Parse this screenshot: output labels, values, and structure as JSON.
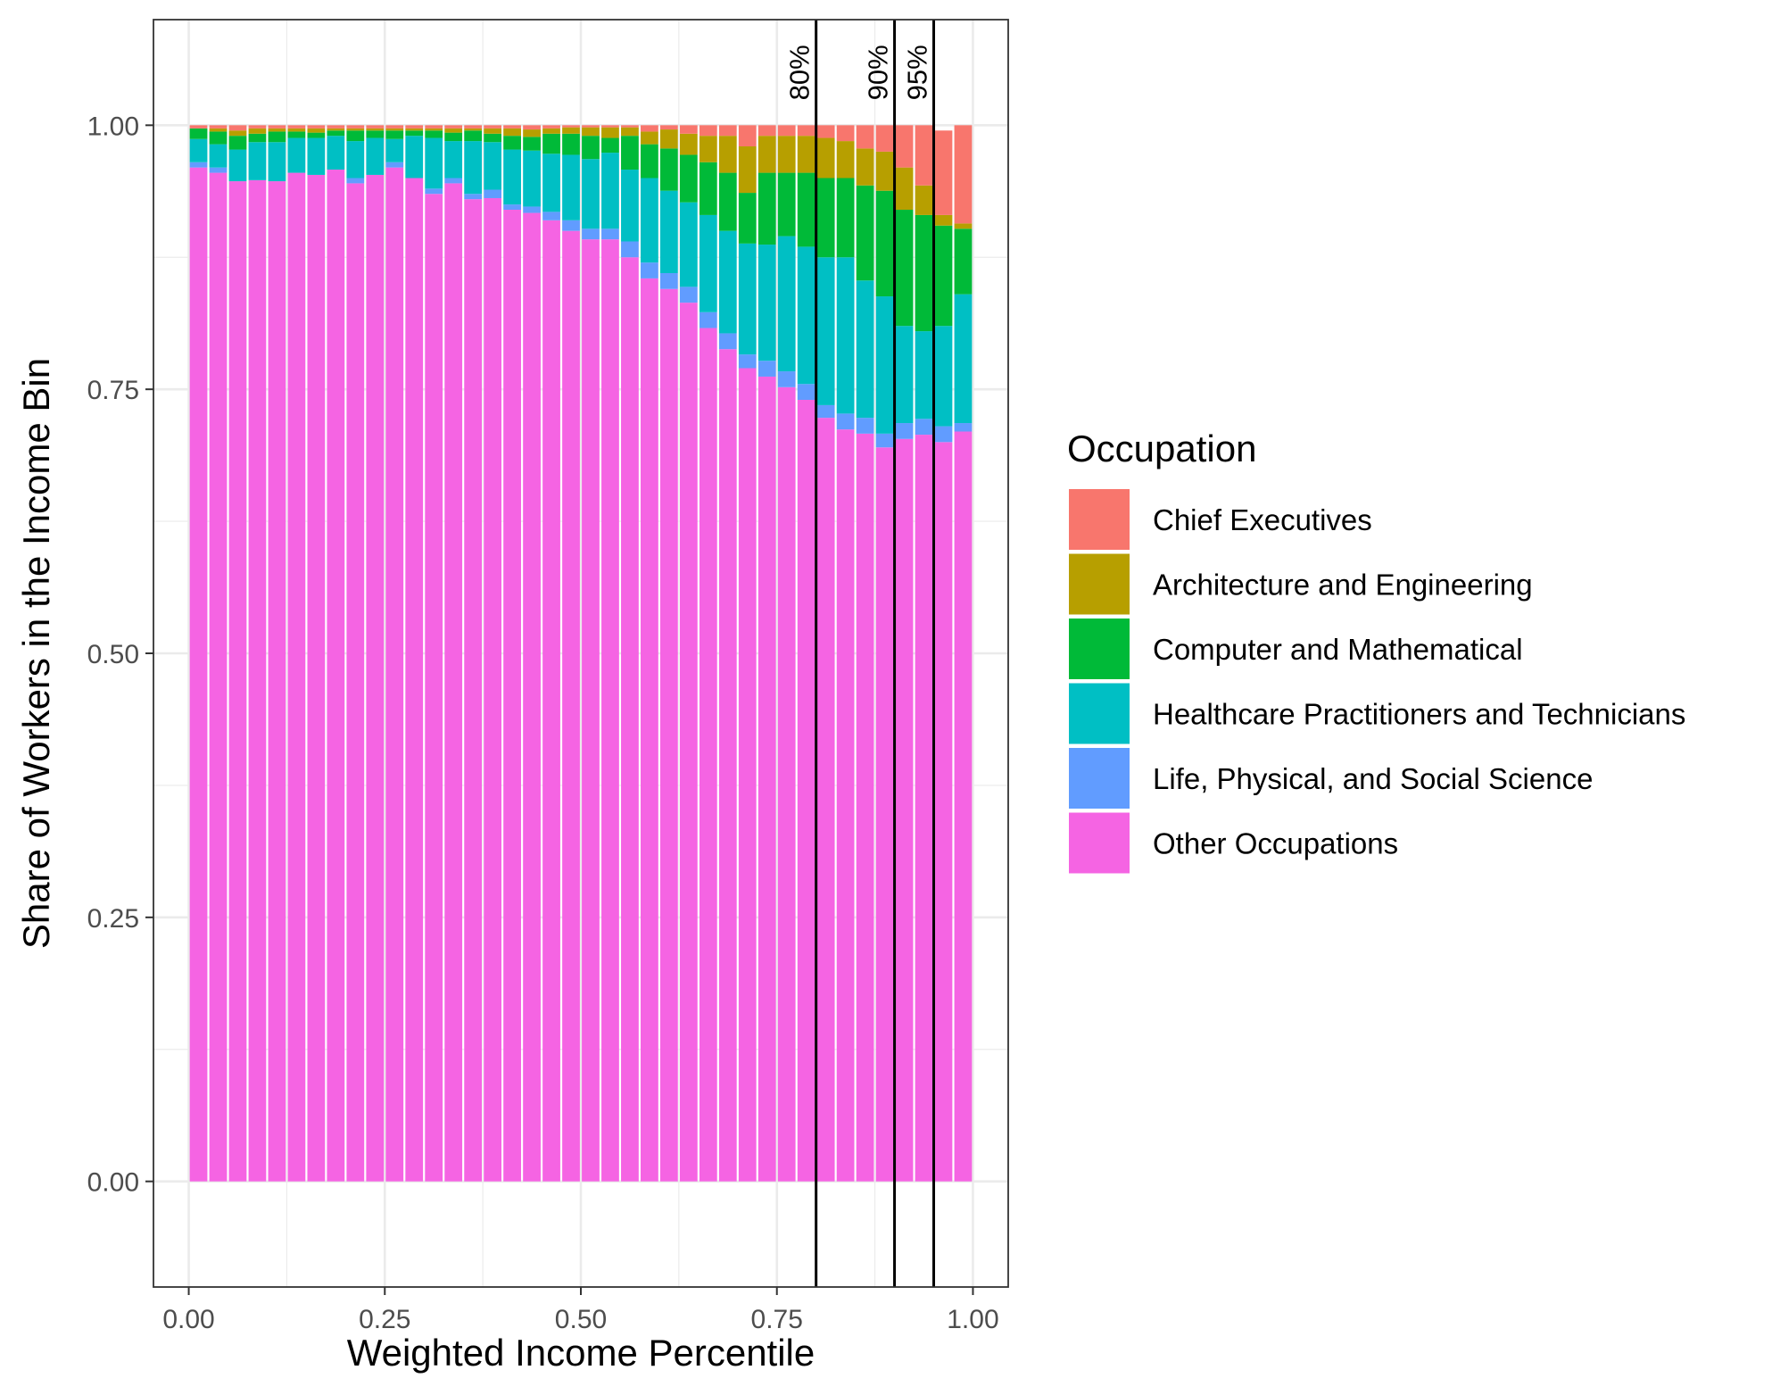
{
  "chart_data": {
    "type": "bar",
    "stacked": true,
    "xlabel": "Weighted Income Percentile",
    "ylabel": "Share of Workers in the Income Bin",
    "xlim": [
      -0.045,
      1.045
    ],
    "ylim": [
      -0.1,
      1.1
    ],
    "x_ticks": [
      "0.00",
      "0.25",
      "0.50",
      "0.75",
      "1.00"
    ],
    "x_tick_values": [
      0,
      0.25,
      0.5,
      0.75,
      1.0
    ],
    "y_ticks": [
      "0.00",
      "0.25",
      "0.50",
      "0.75",
      "1.00"
    ],
    "y_tick_values": [
      0,
      0.25,
      0.5,
      0.75,
      1.0
    ],
    "grid": true,
    "bar_width": 0.0225,
    "x": [
      0.0125,
      0.0375,
      0.0625,
      0.0875,
      0.1125,
      0.1375,
      0.1625,
      0.1875,
      0.2125,
      0.2375,
      0.2625,
      0.2875,
      0.3125,
      0.3375,
      0.3625,
      0.3875,
      0.4125,
      0.4375,
      0.4625,
      0.4875,
      0.5125,
      0.5375,
      0.5625,
      0.5875,
      0.6125,
      0.6375,
      0.6625,
      0.6875,
      0.7125,
      0.7375,
      0.7625,
      0.7875,
      0.8125,
      0.8375,
      0.8625,
      0.8875,
      0.9125,
      0.9375,
      0.9625,
      0.9875
    ],
    "series": [
      {
        "name": "Other Occupations",
        "color": "#F564E3",
        "values": [
          0.96,
          0.955,
          0.947,
          0.948,
          0.947,
          0.955,
          0.953,
          0.958,
          0.945,
          0.953,
          0.96,
          0.95,
          0.935,
          0.945,
          0.93,
          0.931,
          0.92,
          0.917,
          0.91,
          0.9,
          0.892,
          0.892,
          0.875,
          0.855,
          0.845,
          0.832,
          0.808,
          0.788,
          0.77,
          0.762,
          0.752,
          0.74,
          0.723,
          0.712,
          0.708,
          0.695,
          0.703,
          0.707,
          0.7,
          0.71
        ]
      },
      {
        "name": "Life, Physical, and Social Science",
        "color": "#619CFF",
        "values": [
          0.005,
          0.005,
          0.0,
          0.0,
          0.0,
          0.0,
          0.0,
          0.0,
          0.005,
          0.0,
          0.005,
          0.0,
          0.005,
          0.005,
          0.005,
          0.008,
          0.005,
          0.006,
          0.008,
          0.01,
          0.01,
          0.01,
          0.015,
          0.015,
          0.015,
          0.015,
          0.015,
          0.015,
          0.013,
          0.015,
          0.015,
          0.015,
          0.012,
          0.015,
          0.015,
          0.013,
          0.015,
          0.015,
          0.015,
          0.008
        ]
      },
      {
        "name": "Healthcare Practitioners and Technicians",
        "color": "#00BFC4",
        "values": [
          0.022,
          0.022,
          0.03,
          0.036,
          0.037,
          0.033,
          0.035,
          0.032,
          0.035,
          0.035,
          0.022,
          0.04,
          0.048,
          0.035,
          0.05,
          0.045,
          0.052,
          0.053,
          0.055,
          0.062,
          0.066,
          0.072,
          0.068,
          0.08,
          0.078,
          0.08,
          0.092,
          0.097,
          0.105,
          0.11,
          0.128,
          0.13,
          0.14,
          0.148,
          0.13,
          0.13,
          0.092,
          0.083,
          0.095,
          0.122
        ]
      },
      {
        "name": "Computer and Mathematical",
        "color": "#00BA38",
        "values": [
          0.01,
          0.012,
          0.013,
          0.008,
          0.01,
          0.006,
          0.005,
          0.005,
          0.01,
          0.007,
          0.008,
          0.005,
          0.007,
          0.008,
          0.01,
          0.008,
          0.013,
          0.013,
          0.019,
          0.02,
          0.022,
          0.014,
          0.032,
          0.032,
          0.04,
          0.045,
          0.05,
          0.055,
          0.048,
          0.068,
          0.06,
          0.07,
          0.075,
          0.075,
          0.09,
          0.1,
          0.11,
          0.11,
          0.095,
          0.062
        ]
      },
      {
        "name": "Architecture and Engineering",
        "color": "#B79F00",
        "values": [
          0.0,
          0.003,
          0.005,
          0.005,
          0.003,
          0.003,
          0.004,
          0.002,
          0.002,
          0.002,
          0.002,
          0.002,
          0.002,
          0.004,
          0.002,
          0.005,
          0.007,
          0.007,
          0.005,
          0.006,
          0.008,
          0.01,
          0.008,
          0.012,
          0.018,
          0.02,
          0.025,
          0.035,
          0.044,
          0.035,
          0.035,
          0.035,
          0.038,
          0.035,
          0.035,
          0.037,
          0.04,
          0.028,
          0.01,
          0.005
        ]
      },
      {
        "name": "Chief Executives",
        "color": "#F8766D",
        "values": [
          0.003,
          0.003,
          0.005,
          0.003,
          0.003,
          0.003,
          0.003,
          0.003,
          0.003,
          0.003,
          0.003,
          0.003,
          0.003,
          0.003,
          0.003,
          0.003,
          0.003,
          0.004,
          0.003,
          0.002,
          0.002,
          0.002,
          0.002,
          0.006,
          0.004,
          0.008,
          0.01,
          0.01,
          0.02,
          0.01,
          0.01,
          0.01,
          0.012,
          0.015,
          0.022,
          0.025,
          0.04,
          0.057,
          0.08,
          0.093
        ]
      }
    ],
    "reference_lines": [
      {
        "x": 0.8,
        "label": "80%"
      },
      {
        "x": 0.9,
        "label": "90%"
      },
      {
        "x": 0.95,
        "label": "95%"
      }
    ],
    "legend": {
      "title": "Occupation",
      "placement": "right",
      "items": [
        {
          "label": "Chief Executives",
          "color": "#F8766D"
        },
        {
          "label": "Architecture and Engineering",
          "color": "#B79F00"
        },
        {
          "label": "Computer and Mathematical",
          "color": "#00BA38"
        },
        {
          "label": "Healthcare Practitioners and Technicians",
          "color": "#00BFC4"
        },
        {
          "label": "Life, Physical, and Social Science",
          "color": "#619CFF"
        },
        {
          "label": "Other Occupations",
          "color": "#F564E3"
        }
      ]
    }
  }
}
